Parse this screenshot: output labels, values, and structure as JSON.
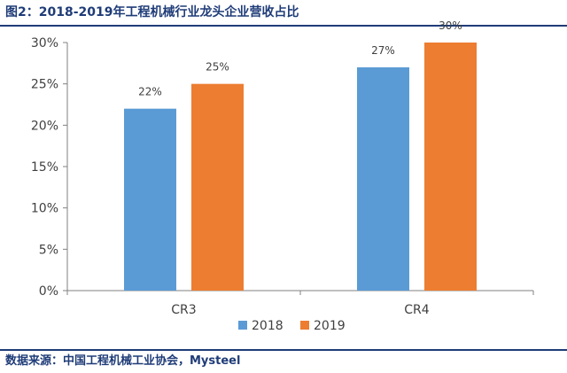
{
  "figure": {
    "title": "图2：2018-2019年工程机械行业龙头企业营收占比",
    "source": "数据来源：中国工程机械工业协会，Mysteel"
  },
  "colors": {
    "series_2018": "#5b9bd5",
    "series_2019": "#ed7d31",
    "title_text": "#1f3c78",
    "axis": "#808080"
  },
  "chart_data": {
    "type": "bar",
    "categories": [
      "CR3",
      "CR4"
    ],
    "series": [
      {
        "name": "2018",
        "values": [
          22,
          27
        ],
        "labels": [
          "22%",
          "27%"
        ]
      },
      {
        "name": "2019",
        "values": [
          25,
          30
        ],
        "labels": [
          "25%",
          "30%"
        ]
      }
    ],
    "ylim": [
      0,
      30
    ],
    "yticks": [
      0,
      5,
      10,
      15,
      20,
      25,
      30
    ],
    "ytick_labels": [
      "0%",
      "5%",
      "10%",
      "15%",
      "20%",
      "25%",
      "30%"
    ],
    "grid": false,
    "legend": "bottom-center"
  }
}
